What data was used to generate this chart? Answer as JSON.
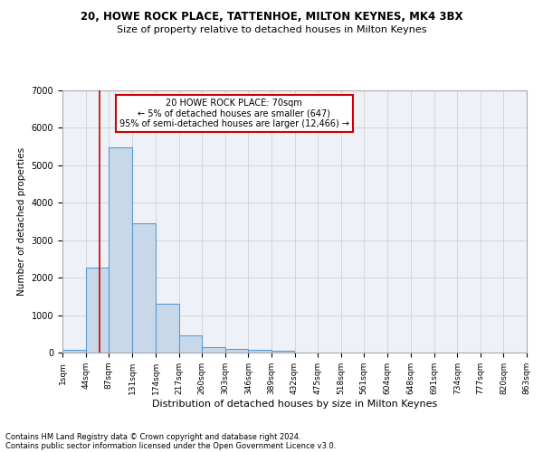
{
  "title1": "20, HOWE ROCK PLACE, TATTENHOE, MILTON KEYNES, MK4 3BX",
  "title2": "Size of property relative to detached houses in Milton Keynes",
  "xlabel": "Distribution of detached houses by size in Milton Keynes",
  "ylabel": "Number of detached properties",
  "bar_color": "#c8d8e8",
  "bar_edge_color": "#5b9bd5",
  "annotation_text": "20 HOWE ROCK PLACE: 70sqm\n← 5% of detached houses are smaller (647)\n95% of semi-detached houses are larger (12,466) →",
  "vline_x": 70,
  "vline_color": "#cc0000",
  "footer1": "Contains HM Land Registry data © Crown copyright and database right 2024.",
  "footer2": "Contains public sector information licensed under the Open Government Licence v3.0.",
  "xlim": [
    1,
    863
  ],
  "ylim": [
    0,
    7000
  ],
  "bin_edges": [
    1,
    44,
    87,
    131,
    174,
    217,
    260,
    303,
    346,
    389,
    432,
    475,
    518,
    561,
    604,
    648,
    691,
    734,
    777,
    820,
    863
  ],
  "bar_heights": [
    80,
    2270,
    5470,
    3450,
    1310,
    470,
    155,
    95,
    65,
    45,
    10,
    0,
    0,
    0,
    0,
    0,
    0,
    0,
    0,
    0
  ],
  "tick_labels": [
    "1sqm",
    "44sqm",
    "87sqm",
    "131sqm",
    "174sqm",
    "217sqm",
    "260sqm",
    "303sqm",
    "346sqm",
    "389sqm",
    "432sqm",
    "475sqm",
    "518sqm",
    "561sqm",
    "604sqm",
    "648sqm",
    "691sqm",
    "734sqm",
    "777sqm",
    "820sqm",
    "863sqm"
  ],
  "grid_color": "#d0d0d0",
  "bg_color": "#eef2f8",
  "box_color": "#cc0000",
  "title1_fontsize": 8.5,
  "title2_fontsize": 8,
  "ylabel_fontsize": 7.5,
  "xlabel_fontsize": 8,
  "tick_fontsize": 6.5,
  "footer_fontsize": 6,
  "annotation_fontsize": 7
}
